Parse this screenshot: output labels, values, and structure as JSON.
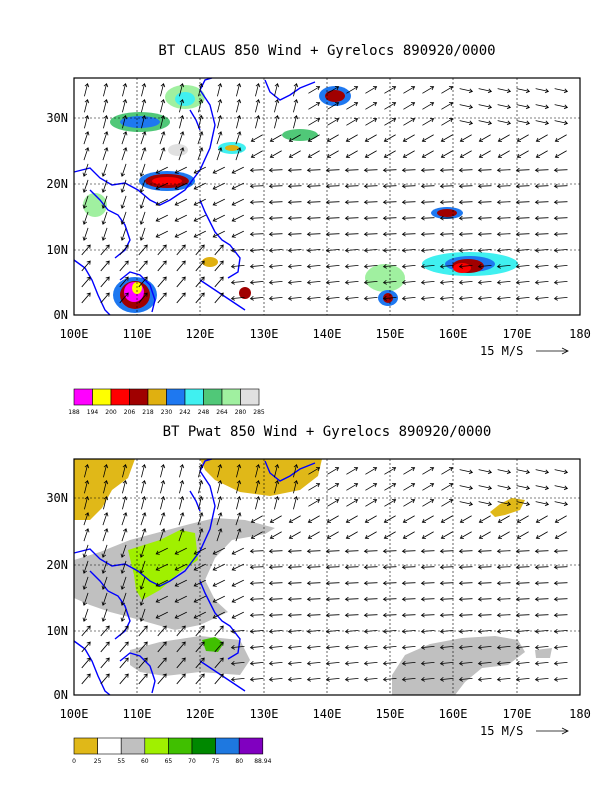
{
  "panels": [
    {
      "title": "BT CLAUS 850 Wind + Gyrelocs 890920/0000",
      "x_ticks": [
        "100E",
        "110E",
        "120E",
        "130E",
        "140E",
        "150E",
        "160E",
        "170E",
        "180"
      ],
      "y_ticks": [
        "0N",
        "10N",
        "20N",
        "30N"
      ],
      "scale_label": "15 M/S",
      "colorbar": {
        "colors": [
          "#ff00ff",
          "#ffff00",
          "#ff0000",
          "#a00000",
          "#e0b010",
          "#1e78f0",
          "#40f0f0",
          "#50c878",
          "#a0f0a0",
          "#e0e0e0"
        ],
        "labels": [
          "188",
          "194",
          "200",
          "206",
          "218",
          "230",
          "242",
          "248",
          "264",
          "280",
          "285"
        ]
      }
    },
    {
      "title": "BT Pwat 850 Wind + Gyrelocs 890920/0000",
      "x_ticks": [
        "100E",
        "110E",
        "120E",
        "130E",
        "140E",
        "150E",
        "160E",
        "170E",
        "180"
      ],
      "y_ticks": [
        "0N",
        "10N",
        "20N",
        "30N"
      ],
      "scale_label": "15 M/S",
      "colorbar": {
        "colors": [
          "#e0b818",
          "#ffffff",
          "#c0c0c0",
          "#a0f000",
          "#40c000",
          "#008800",
          "#1e78e0",
          "#8000c0"
        ],
        "labels": [
          "0",
          "25",
          "55",
          "60",
          "65",
          "70",
          "75",
          "80",
          "88.94"
        ]
      }
    }
  ]
}
